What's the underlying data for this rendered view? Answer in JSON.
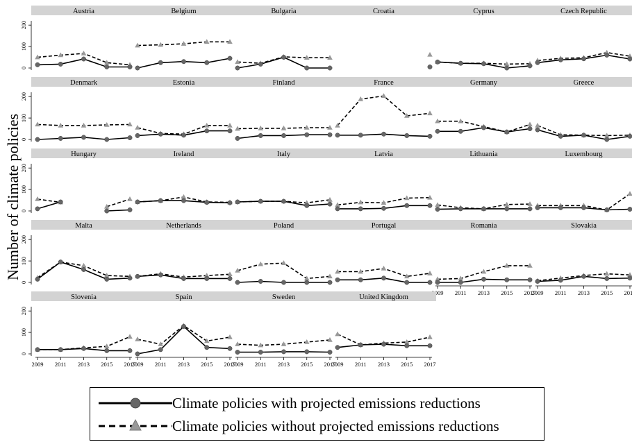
{
  "figure": {
    "y_axis_title": "Number of climate policies"
  },
  "legend": {
    "items": [
      {
        "label": "Climate policies with projected emissions reductions",
        "style": "solid",
        "marker": "circle",
        "color": "#000000",
        "marker_color": "#666666"
      },
      {
        "label": "Climate policies without projected emissions reductions",
        "style": "dashed",
        "marker": "triangle",
        "color": "#000000",
        "marker_color": "#999999"
      }
    ]
  },
  "chart_data": {
    "type": "line",
    "layout": "small-multiples",
    "x": [
      2009,
      2011,
      2013,
      2015,
      2017
    ],
    "x_ticks": [
      "2009",
      "2011",
      "2013",
      "2015",
      "2017"
    ],
    "y_ticks": [
      "0",
      "100",
      "200"
    ],
    "ylim": [
      0,
      220
    ],
    "ylabel": "Number of climate policies",
    "series_names": [
      "Climate policies with projected emissions reductions",
      "Climate policies without projected emissions reductions"
    ],
    "panels": [
      {
        "title": "Austria",
        "with": [
          15,
          18,
          42,
          5,
          5
        ],
        "without": [
          50,
          60,
          68,
          25,
          15
        ]
      },
      {
        "title": "Belgium",
        "with": [
          0,
          25,
          30,
          25,
          45
        ],
        "without": [
          105,
          108,
          113,
          122,
          122
        ]
      },
      {
        "title": "Bulgaria",
        "with": [
          0,
          18,
          50,
          0,
          0
        ],
        "without": [
          28,
          22,
          52,
          48,
          48
        ]
      },
      {
        "title": "Croatia",
        "with": [
          null,
          null,
          null,
          null,
          5
        ],
        "without": [
          null,
          null,
          null,
          null,
          62
        ]
      },
      {
        "title": "Cyprus",
        "with": [
          28,
          22,
          20,
          0,
          10
        ],
        "without": [
          28,
          22,
          22,
          18,
          20
        ]
      },
      {
        "title": "Czech Republic",
        "with": [
          25,
          38,
          43,
          60,
          42
        ],
        "without": [
          35,
          45,
          48,
          72,
          55
        ]
      },
      {
        "title": "Denmark",
        "with": [
          0,
          5,
          10,
          0,
          8
        ],
        "without": [
          70,
          65,
          65,
          68,
          70
        ]
      },
      {
        "title": "Estonia",
        "with": [
          18,
          25,
          20,
          40,
          40
        ],
        "without": [
          55,
          28,
          25,
          65,
          65
        ]
      },
      {
        "title": "Finland",
        "with": [
          5,
          18,
          18,
          22,
          22
        ],
        "without": [
          50,
          52,
          52,
          55,
          55
        ]
      },
      {
        "title": "France",
        "with": [
          20,
          20,
          25,
          18,
          15
        ],
        "without": [
          65,
          188,
          203,
          110,
          122
        ]
      },
      {
        "title": "Germany",
        "with": [
          38,
          38,
          55,
          35,
          50
        ],
        "without": [
          85,
          85,
          60,
          35,
          70
        ]
      },
      {
        "title": "Greece",
        "with": [
          45,
          15,
          20,
          0,
          15
        ],
        "without": [
          65,
          22,
          20,
          18,
          20
        ]
      },
      {
        "title": "Hungary",
        "with": [
          10,
          42,
          null,
          0,
          5
        ],
        "without": [
          55,
          40,
          null,
          20,
          55
        ]
      },
      {
        "title": "Ireland",
        "with": [
          42,
          48,
          48,
          40,
          38
        ],
        "without": [
          42,
          48,
          65,
          42,
          40
        ]
      },
      {
        "title": "Italy",
        "with": [
          42,
          45,
          45,
          25,
          32
        ],
        "without": [
          42,
          45,
          45,
          38,
          52
        ]
      },
      {
        "title": "Latvia",
        "with": [
          10,
          10,
          12,
          25,
          25
        ],
        "without": [
          28,
          40,
          38,
          60,
          62
        ]
      },
      {
        "title": "Lithuania",
        "with": [
          8,
          10,
          10,
          10,
          10
        ],
        "without": [
          28,
          15,
          10,
          30,
          32
        ]
      },
      {
        "title": "Luxembourg",
        "with": [
          15,
          15,
          15,
          5,
          8
        ],
        "without": [
          25,
          25,
          25,
          5,
          80
        ]
      },
      {
        "title": "Malta",
        "with": [
          15,
          95,
          60,
          15,
          20
        ],
        "without": [
          22,
          95,
          78,
          32,
          28
        ]
      },
      {
        "title": "Netherlands",
        "with": [
          28,
          35,
          18,
          18,
          18
        ],
        "without": [
          28,
          40,
          25,
          32,
          38
        ]
      },
      {
        "title": "Poland",
        "with": [
          0,
          5,
          0,
          0,
          0
        ],
        "without": [
          55,
          85,
          90,
          18,
          28
        ]
      },
      {
        "title": "Portugal",
        "with": [
          12,
          12,
          20,
          0,
          0
        ],
        "without": [
          50,
          50,
          65,
          28,
          42
        ]
      },
      {
        "title": "Romania",
        "with": [
          0,
          0,
          15,
          12,
          12
        ],
        "without": [
          15,
          18,
          50,
          78,
          78
        ]
      },
      {
        "title": "Slovakia",
        "with": [
          5,
          10,
          28,
          18,
          20
        ],
        "without": [
          8,
          20,
          32,
          40,
          35
        ]
      },
      {
        "title": "Slovenia",
        "with": [
          20,
          20,
          25,
          15,
          15
        ],
        "without": [
          20,
          20,
          28,
          35,
          80
        ]
      },
      {
        "title": "Spain",
        "with": [
          0,
          20,
          128,
          30,
          25
        ],
        "without": [
          68,
          45,
          132,
          60,
          78
        ]
      },
      {
        "title": "Sweden",
        "with": [
          8,
          8,
          10,
          10,
          8
        ],
        "without": [
          45,
          40,
          45,
          55,
          65
        ]
      },
      {
        "title": "United Kingdom",
        "with": [
          30,
          42,
          45,
          38,
          38
        ],
        "without": [
          92,
          42,
          50,
          55,
          78
        ]
      }
    ]
  }
}
